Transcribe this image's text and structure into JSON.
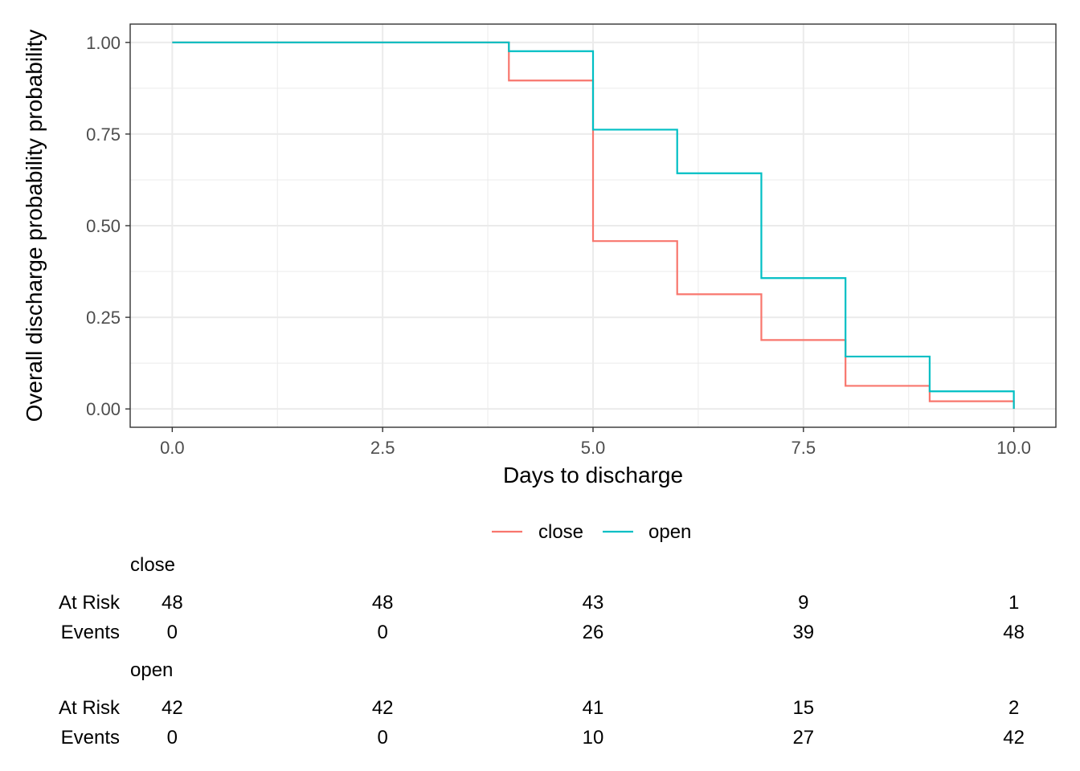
{
  "chart_data": {
    "type": "line",
    "step": true,
    "xlabel": "Days to discharge",
    "ylabel": "Overall discharge probability probability",
    "xlim": [
      -0.5,
      10.5
    ],
    "ylim": [
      -0.05,
      1.05
    ],
    "x_ticks": [
      0,
      2.5,
      5,
      7.5,
      10
    ],
    "x_tick_labels": [
      "0.0",
      "2.5",
      "5.0",
      "7.5",
      "10.0"
    ],
    "y_ticks": [
      0,
      0.25,
      0.5,
      0.75,
      1
    ],
    "y_tick_labels": [
      "0.00",
      "0.25",
      "0.50",
      "0.75",
      "1.00"
    ],
    "grid": true,
    "legend_position": "bottom",
    "series": [
      {
        "name": "close",
        "color": "#F8766D",
        "x": [
          0,
          4,
          5,
          6,
          7,
          8,
          9,
          10
        ],
        "y": [
          1.0,
          0.896,
          0.458,
          0.313,
          0.188,
          0.063,
          0.021,
          0.0
        ]
      },
      {
        "name": "open",
        "color": "#00BFC4",
        "x": [
          0,
          4,
          5,
          6,
          7,
          8,
          9,
          10
        ],
        "y": [
          1.0,
          0.976,
          0.762,
          0.643,
          0.357,
          0.143,
          0.048,
          0.0
        ]
      }
    ],
    "risk_table": {
      "times": [
        0,
        2.5,
        5,
        7.5,
        10
      ],
      "row_labels": [
        "At Risk",
        "Events"
      ],
      "groups": [
        {
          "name": "close",
          "at_risk": [
            "48",
            "48",
            "43",
            "9",
            "1"
          ],
          "events": [
            "0",
            "0",
            "26",
            "39",
            "48"
          ]
        },
        {
          "name": "open",
          "at_risk": [
            "42",
            "42",
            "41",
            "15",
            "2"
          ],
          "events": [
            "0",
            "0",
            "10",
            "27",
            "42"
          ]
        }
      ]
    }
  }
}
